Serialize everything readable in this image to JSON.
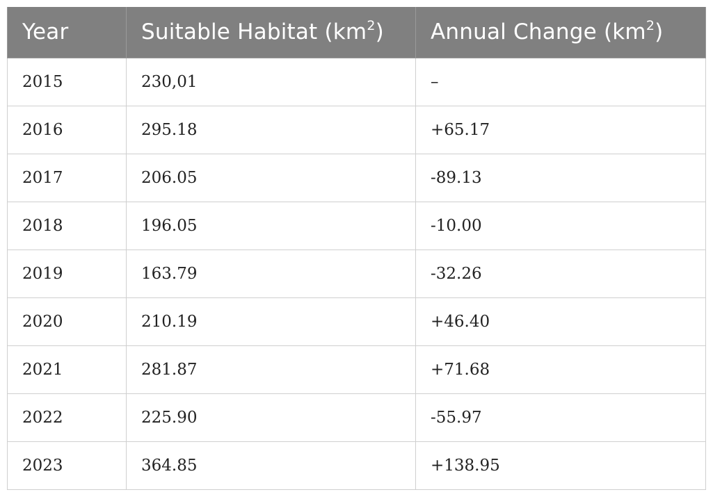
{
  "table": {
    "headers": {
      "year": "Year",
      "habitat": "Suitable Habitat (km",
      "habitat_sup": "2",
      "habitat_close": ")",
      "change": "Annual Change (km",
      "change_sup": "2",
      "change_close": ")"
    },
    "rows": [
      {
        "year": "2015",
        "habitat": "230,01",
        "change": "–"
      },
      {
        "year": "2016",
        "habitat": "295.18",
        "change": "+65.17"
      },
      {
        "year": "2017",
        "habitat": "206.05",
        "change": "-89.13"
      },
      {
        "year": "2018",
        "habitat": "196.05",
        "change": "-10.00"
      },
      {
        "year": "2019",
        "habitat": "163.79",
        "change": "-32.26"
      },
      {
        "year": "2020",
        "habitat": "210.19",
        "change": "+46.40"
      },
      {
        "year": "2021",
        "habitat": "281.87",
        "change": "+71.68"
      },
      {
        "year": "2022",
        "habitat": "225.90",
        "change": "-55.97"
      },
      {
        "year": "2023",
        "habitat": "364.85",
        "change": "+138.95"
      }
    ]
  },
  "colors": {
    "header_bg": "#808080",
    "header_text": "#ffffff",
    "border": "#cfcfcf"
  }
}
